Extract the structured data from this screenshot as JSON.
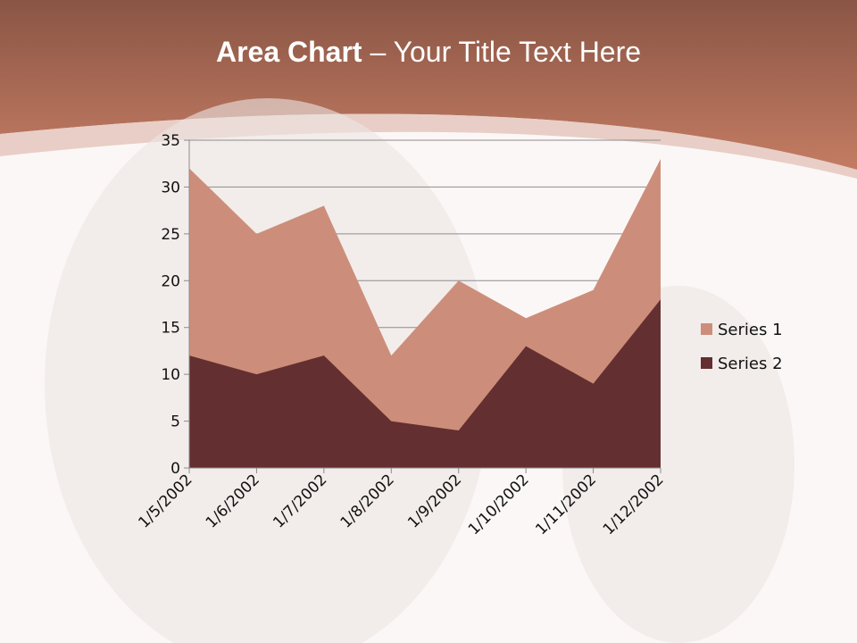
{
  "slide": {
    "title_bold": "Area Chart",
    "title_rest": " – Your Title Text Here"
  },
  "colors": {
    "header_top": "#8a5545",
    "header_bottom": "#c47c63",
    "series1": "#cc8e7a",
    "series2": "#642f30",
    "gridline": "#8c8c8c"
  },
  "chart_data": {
    "type": "area",
    "title": "",
    "categories": [
      "1/5/2002",
      "1/6/2002",
      "1/7/2002",
      "1/8/2002",
      "1/9/2002",
      "1/10/2002",
      "1/11/2002",
      "1/12/2002"
    ],
    "series": [
      {
        "name": "Series 1",
        "color": "#cc8e7a",
        "values": [
          32,
          25,
          28,
          12,
          20,
          16,
          19,
          33
        ]
      },
      {
        "name": "Series 2",
        "color": "#642f30",
        "values": [
          12,
          10,
          12,
          5,
          4,
          13,
          9,
          18
        ]
      }
    ],
    "ylim": [
      0,
      35
    ],
    "yticks": [
      0,
      5,
      10,
      15,
      20,
      25,
      30,
      35
    ],
    "grid": true,
    "legend_position": "right"
  }
}
